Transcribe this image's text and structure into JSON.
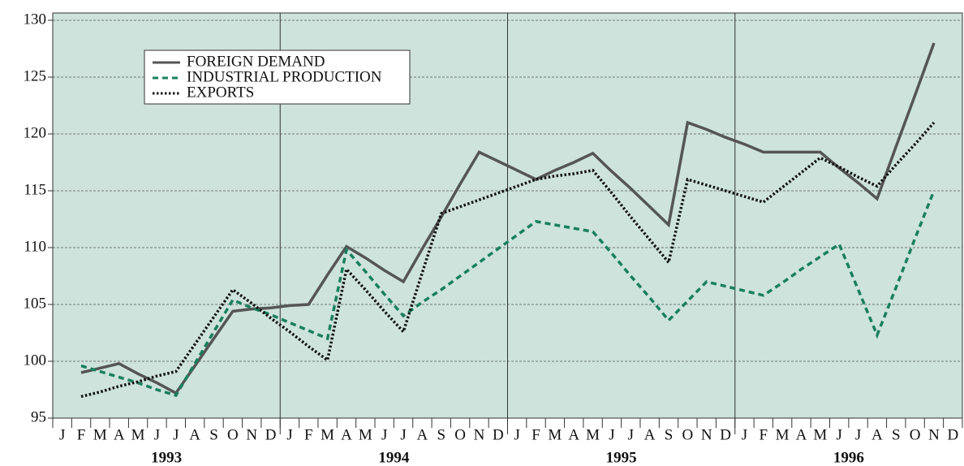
{
  "chart_data": {
    "type": "line",
    "categories": [
      "J",
      "F",
      "M",
      "A",
      "M",
      "J",
      "J",
      "A",
      "S",
      "O",
      "N",
      "D",
      "J",
      "F",
      "M",
      "A",
      "M",
      "J",
      "J",
      "A",
      "S",
      "O",
      "N",
      "D",
      "J",
      "F",
      "M",
      "A",
      "M",
      "J",
      "J",
      "A",
      "S",
      "O",
      "N",
      "D",
      "J",
      "F",
      "M",
      "A",
      "M",
      "J",
      "J",
      "A",
      "S",
      "O",
      "N",
      "D"
    ],
    "years": [
      "1993",
      "1994",
      "1995",
      "1996"
    ],
    "series": [
      {
        "name": "FOREIGN DEMAND",
        "color": "#555555",
        "style": "solid",
        "values": [
          null,
          99,
          99.4,
          99.8,
          98.9,
          98.1,
          97.2,
          99.6,
          102.0,
          104.4,
          104.6,
          104.7,
          104.9,
          105,
          107.6,
          110.1,
          109.1,
          108.0,
          107,
          109.9,
          112.7,
          115.6,
          118.4,
          117.6,
          116.8,
          116,
          116.8,
          117.5,
          118.3,
          116.7,
          115.2,
          113.6,
          112,
          121,
          120.4,
          119.7,
          119.1,
          118.4,
          118.4,
          118.4,
          118.4,
          117.0,
          115.7,
          114.3,
          118.9,
          123.4,
          128,
          null
        ]
      },
      {
        "name": "INDUSTRIAL PRODUCTION",
        "color": "#1a7f5f",
        "style": "dashed",
        "values": [
          null,
          99.6,
          99.1,
          98.6,
          98.1,
          97.5,
          97,
          99.8,
          102.6,
          105.4,
          104.7,
          104.1,
          103.4,
          102.7,
          102,
          109.8,
          107.9,
          105.9,
          104,
          105.2,
          106.3,
          107.5,
          108.7,
          109.9,
          111.1,
          112.3,
          112,
          111.7,
          111.4,
          109.5,
          107.5,
          105.6,
          103.6,
          105.3,
          107,
          106.6,
          106.2,
          105.8,
          106.9,
          108.1,
          109.2,
          110.3,
          106.3,
          102.3,
          106.5,
          110.8,
          115,
          null
        ]
      },
      {
        "name": "EXPORTS",
        "color": "#111111",
        "style": "dotted",
        "values": [
          null,
          96.9,
          97.3,
          97.8,
          98.2,
          98.7,
          99.1,
          101.5,
          103.9,
          106.3,
          105.1,
          103.8,
          102.6,
          101.3,
          100.1,
          108.1,
          106.3,
          104.4,
          102.6,
          107.8,
          113,
          113.6,
          114.2,
          114.8,
          115.4,
          116,
          116.3,
          116.5,
          116.8,
          114.8,
          112.7,
          110.7,
          108.7,
          116,
          115.5,
          115,
          114.5,
          114,
          115.3,
          116.6,
          117.9,
          117.1,
          116.2,
          115.4,
          117.3,
          119.1,
          121,
          null
        ]
      }
    ],
    "ylim": [
      95,
      130
    ],
    "yticks": [
      95,
      100,
      105,
      110,
      115,
      120,
      125,
      130
    ],
    "grid": true,
    "background": "#cde3dc",
    "legend": "upper left"
  }
}
